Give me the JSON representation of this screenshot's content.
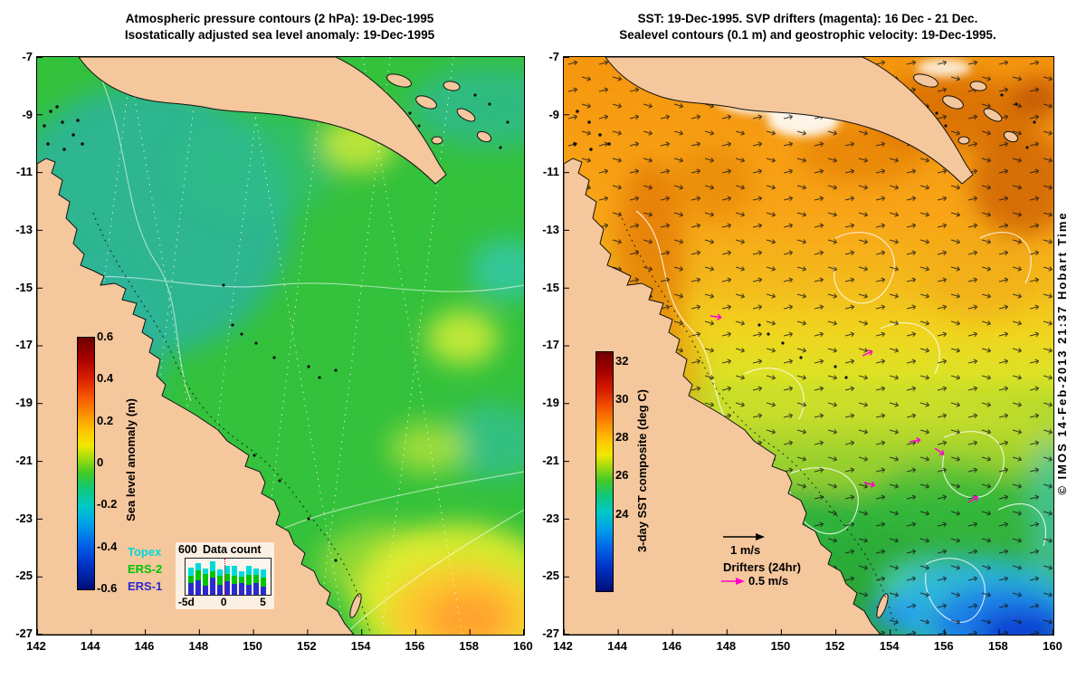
{
  "copyright": "© IMOS 14-Feb-2013 21:37 Hobart Time",
  "colors": {
    "land": "#f5c79c",
    "drifter_magenta": "#ff00cc",
    "sla_ocean_green": "#34c13c",
    "sst_warm_orange": "#f6960e"
  },
  "left_panel": {
    "title1": "Atmospheric pressure contours (2 hPa): 19-Dec-1995",
    "title2": "Isostatically adjusted sea level anomaly: 19-Dec-1995",
    "x_ticks": [
      "142",
      "144",
      "146",
      "148",
      "150",
      "152",
      "154",
      "156",
      "158",
      "160"
    ],
    "y_ticks": [
      "-7",
      "-9",
      "-11",
      "-13",
      "-15",
      "-17",
      "-19",
      "-21",
      "-23",
      "-25",
      "-27"
    ],
    "colorbar": {
      "label": "Sea level anomaly (m)",
      "ticks": [
        "0.6",
        "0.4",
        "0.2",
        "0",
        "-0.2",
        "-0.4",
        "-0.6"
      ]
    },
    "inset": {
      "title": "Data count",
      "ymax": "600",
      "x_ticks": [
        "-5d",
        "0",
        "5"
      ],
      "legend": [
        {
          "label": "Topex",
          "color": "#00d9d9",
          "key": "topex"
        },
        {
          "label": "ERS-2",
          "color": "#00c400",
          "key": "ers2"
        },
        {
          "label": "ERS-1",
          "color": "#2a2ad0",
          "key": "ers1"
        }
      ],
      "bars": [
        {
          "topex": 140,
          "ers2": 120,
          "ers1": 200
        },
        {
          "topex": 120,
          "ers2": 160,
          "ers1": 240
        },
        {
          "topex": 90,
          "ers2": 200,
          "ers1": 150
        },
        {
          "topex": 160,
          "ers2": 110,
          "ers1": 290
        },
        {
          "topex": 110,
          "ers2": 150,
          "ers1": 160
        },
        {
          "topex": 130,
          "ers2": 120,
          "ers1": 230
        },
        {
          "topex": 170,
          "ers2": 140,
          "ers1": 180
        },
        {
          "topex": 90,
          "ers2": 110,
          "ers1": 200
        },
        {
          "topex": 150,
          "ers2": 170,
          "ers1": 160
        },
        {
          "topex": 110,
          "ers2": 130,
          "ers1": 200
        },
        {
          "topex": 140,
          "ers2": 150,
          "ers1": 130
        }
      ]
    }
  },
  "right_panel": {
    "title1": "SST: 19-Dec-1995. SVP drifters (magenta): 16 Dec - 21 Dec.",
    "title2": "Sealevel contours (0.1 m) and geostrophic velocity: 19-Dec-1995.",
    "x_ticks": [
      "142",
      "144",
      "146",
      "148",
      "150",
      "152",
      "154",
      "156",
      "158",
      "160"
    ],
    "y_ticks": [
      "-7",
      "-9",
      "-11",
      "-13",
      "-15",
      "-17",
      "-19",
      "-21",
      "-23",
      "-25",
      "-27"
    ],
    "colorbar": {
      "label": "3-day SST composite (deg C)",
      "ticks": [
        "32",
        "30",
        "28",
        "26",
        "24"
      ]
    },
    "legend": {
      "speed_label": "1 m/s",
      "drifters_label": "Drifters (24hr)",
      "drifter_speed_label": "0.5 m/s"
    }
  }
}
